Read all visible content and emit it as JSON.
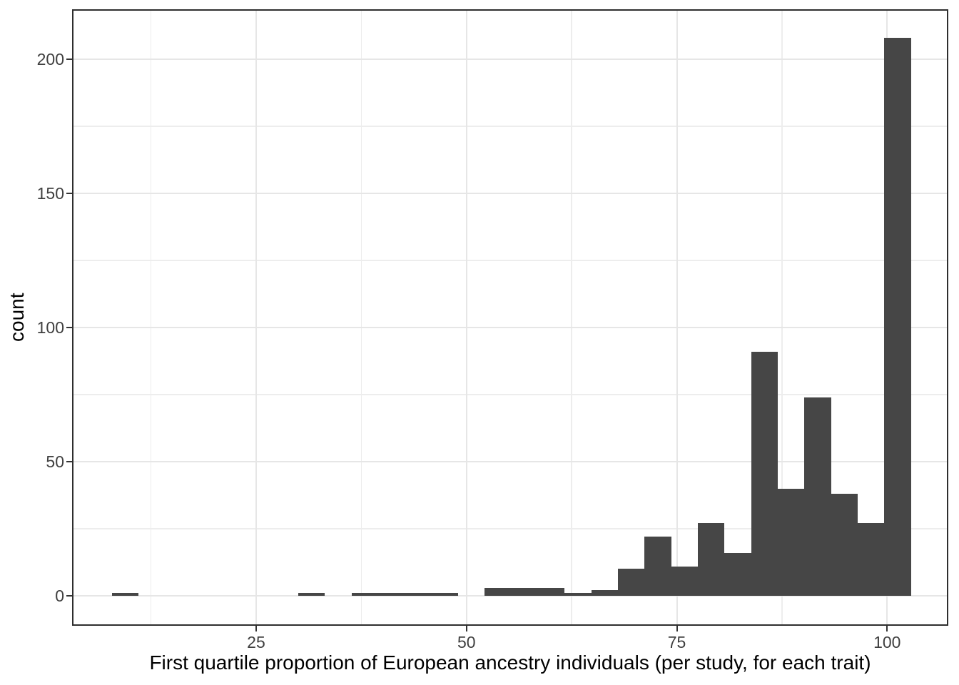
{
  "chart_data": {
    "type": "bar",
    "subtype": "histogram",
    "title": "",
    "xlabel": "First quartile proportion of European ancestry individuals (per study, for each trait)",
    "ylabel": "count",
    "bin_start": 7.83,
    "bin_width": 3.167,
    "counts": [
      1,
      0,
      0,
      0,
      0,
      0,
      0,
      1,
      0,
      1,
      1,
      1,
      1,
      0,
      3,
      3,
      3,
      1,
      2,
      10,
      22,
      11,
      27,
      16,
      91,
      40,
      74,
      38,
      27,
      208
    ],
    "x_ticks": [
      25,
      50,
      75,
      100
    ],
    "y_ticks": [
      0,
      50,
      100,
      150,
      200
    ],
    "x_minor_gridlines": [
      12.5,
      37.5,
      62.5,
      87.5
    ],
    "y_minor_gridlines": [
      25,
      75,
      125,
      175
    ],
    "xlim": [
      3.12,
      107.27
    ],
    "ylim": [
      -11.2,
      218.7
    ],
    "grid": true,
    "legend_position": "none",
    "colors": {
      "bar_fill": "#464646",
      "panel_border": "#2E2E2E",
      "grid_major": "#E6E6E6",
      "grid_minor": "#EDEDED",
      "tick_mark": "#333333",
      "tick_label": "#3F3F3F",
      "axis_title": "#000000",
      "background": "#FFFFFF"
    }
  }
}
